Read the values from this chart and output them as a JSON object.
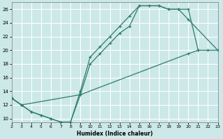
{
  "xlabel": "Humidex (Indice chaleur)",
  "bg_color": "#cce8e8",
  "grid_color": "#ffffff",
  "line_color": "#2e7d6e",
  "xlim": [
    2,
    23
  ],
  "ylim": [
    9.5,
    27
  ],
  "xticks": [
    2,
    3,
    4,
    5,
    6,
    7,
    8,
    9,
    10,
    11,
    12,
    13,
    14,
    15,
    16,
    17,
    18,
    19,
    20,
    21,
    22,
    23
  ],
  "yticks": [
    10,
    12,
    14,
    16,
    18,
    20,
    22,
    24,
    26
  ],
  "line1_x": [
    2,
    3,
    4,
    5,
    6,
    7,
    8,
    9,
    10,
    11,
    12,
    13,
    14,
    15,
    16,
    17,
    18,
    19,
    20,
    23
  ],
  "line1_y": [
    13,
    12,
    11,
    10.5,
    10,
    9.5,
    9.5,
    14,
    19,
    20.5,
    22,
    23.5,
    25,
    26.5,
    26.5,
    26.5,
    26,
    26,
    24.5,
    20
  ],
  "line2_x": [
    2,
    3,
    4,
    5,
    6,
    7,
    8,
    9,
    10,
    11,
    12,
    13,
    14,
    15,
    16,
    17,
    18,
    19,
    20,
    21
  ],
  "line2_y": [
    13,
    12,
    11,
    10.5,
    10,
    9.5,
    9.5,
    13.5,
    18,
    19.5,
    21,
    22.5,
    23.5,
    26.5,
    26.5,
    26.5,
    26,
    26,
    26,
    20
  ],
  "line3_x": [
    2,
    3,
    9,
    20,
    21,
    22,
    23
  ],
  "line3_y": [
    13,
    12,
    13.5,
    19.5,
    20,
    20,
    20
  ]
}
